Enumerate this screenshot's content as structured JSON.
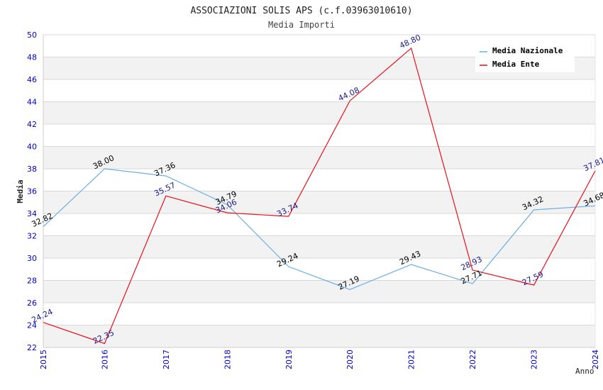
{
  "chart_data": {
    "type": "line",
    "title": "ASSOCIAZIONI SOLIS APS (c.f.03963010610)",
    "subtitle": "Media Importi",
    "xlabel": "Anno",
    "ylabel": "Media",
    "x": [
      "2015",
      "2016",
      "2017",
      "2018",
      "2019",
      "2020",
      "2021",
      "2022",
      "2023",
      "2024"
    ],
    "ylim": [
      22,
      50
    ],
    "yticks": [
      "22",
      "24",
      "26",
      "28",
      "30",
      "32",
      "34",
      "36",
      "38",
      "40",
      "42",
      "44",
      "46",
      "48",
      "50"
    ],
    "grid": true,
    "legend_position": "top-right",
    "series": [
      {
        "name": "Media Nazionale",
        "color": "#6aaee6",
        "label_color": "#000000",
        "values": [
          32.82,
          38.0,
          37.36,
          34.79,
          29.24,
          27.19,
          29.43,
          27.71,
          34.32,
          34.68
        ],
        "labels": [
          "32.82",
          "38.00",
          "37.36",
          "34.79",
          "29.24",
          "27.19",
          "29.43",
          "27.71",
          "34.32",
          "34.68"
        ]
      },
      {
        "name": "Media Ente",
        "color": "#e8101a",
        "label_color": "#1a1a8c",
        "values": [
          24.24,
          22.35,
          35.57,
          34.06,
          33.74,
          44.08,
          48.8,
          28.93,
          27.59,
          37.81
        ],
        "labels": [
          "24.24",
          "22.35",
          "35.57",
          "34.06",
          "33.74",
          "44.08",
          "48.80",
          "28.93",
          "27.59",
          "37.81"
        ]
      }
    ]
  },
  "colors": {
    "axis_tick_label": "#0000cc",
    "band": "#f2f2f2",
    "grid": "#d8d8d8",
    "text": "#222222"
  }
}
